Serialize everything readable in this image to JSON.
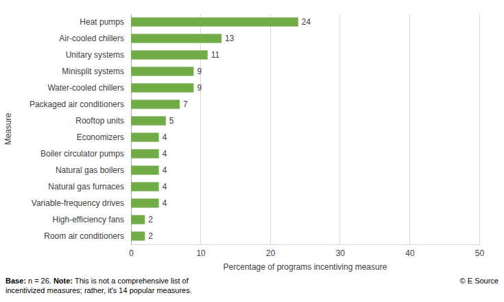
{
  "chart_data": {
    "type": "bar",
    "orientation": "horizontal",
    "categories": [
      "Heat pumps",
      "Air-cooled chillers",
      "Unitary systems",
      "Minisplit systems",
      "Water-cooled chillers",
      "Packaged air conditioners",
      "Rooftop units",
      "Economizers",
      "Boiler circulator pumps",
      "Natural gas boilers",
      "Natural gas furnaces",
      "Variable-frequency drives",
      "High-efficiency fans",
      "Room air conditioners"
    ],
    "values": [
      24,
      13,
      11,
      9,
      9,
      7,
      5,
      4,
      4,
      4,
      4,
      4,
      2,
      2
    ],
    "color": "#70ad47",
    "xlim": [
      0,
      50
    ],
    "xticks": [
      0,
      10,
      20,
      30,
      40,
      50
    ],
    "grid": true,
    "data_labels": true,
    "x_label": "Percentage of programs incentiving measure",
    "y_label": "Measure",
    "footnote": {
      "base_label": "Base:",
      "base": "n = 26.",
      "note_label": "Note:",
      "note": [
        "This is not a comprehensive list of",
        "incentivized measures; rather, it's 14 popular measures."
      ]
    },
    "source": "© E Source"
  }
}
